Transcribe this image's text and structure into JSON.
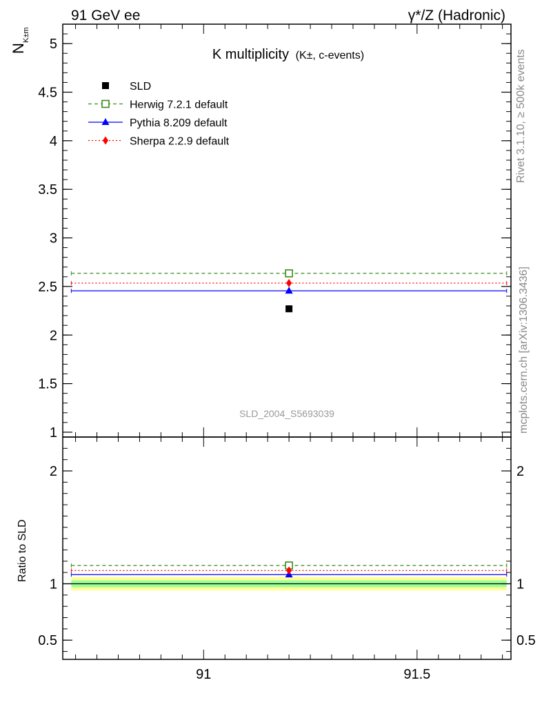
{
  "header": {
    "left": "91 GeV ee",
    "right": "γ*/Z (Hadronic)"
  },
  "side_labels": {
    "rivet": "Rivet 3.1.10, ≥ 500k events",
    "mcplots": "mcplots.cern.ch [arXiv:1306.3436]"
  },
  "chart_data": [
    {
      "type": "scatter",
      "title_main": "K multiplicity",
      "title_sub": "(K±, c-events)",
      "ylabel_main": "N",
      "ylabel_sub": "K±m",
      "watermark": "SLD_2004_S5693039",
      "xlim": [
        90.67,
        91.72
      ],
      "ylim": [
        0.95,
        5.2
      ],
      "yticks": [
        1,
        1.5,
        2,
        2.5,
        3,
        3.5,
        4,
        4.5,
        5
      ],
      "ytick_labels": [
        "1",
        "1.5",
        "2",
        "2.5",
        "3",
        "3.5",
        "4",
        "4.5",
        "5"
      ],
      "legend_position": "top-left",
      "series": [
        {
          "name": "SLD",
          "x": 91.2,
          "y": 2.27,
          "marker": "square-filled",
          "color": "#000000"
        },
        {
          "name": "Herwig 7.2.1 default",
          "x": 91.2,
          "y": 2.635,
          "x_range": [
            90.69,
            91.71
          ],
          "marker": "square-open",
          "line": "dashed",
          "color": "#3a8a1a"
        },
        {
          "name": "Pythia 8.209 default",
          "x": 91.2,
          "y": 2.455,
          "x_range": [
            90.69,
            91.71
          ],
          "marker": "triangle",
          "line": "solid",
          "color": "#0000ff"
        },
        {
          "name": "Sherpa 2.2.9 default",
          "x": 91.2,
          "y": 2.535,
          "x_range": [
            90.69,
            91.71
          ],
          "marker": "diamond",
          "line": "dotted",
          "color": "#ff0000"
        }
      ]
    },
    {
      "type": "scatter",
      "ylabel": "Ratio to SLD",
      "xlim": [
        90.67,
        91.72
      ],
      "ylim": [
        0.33,
        2.3
      ],
      "yticks": [
        0.5,
        1,
        2
      ],
      "ytick_labels": [
        "0.5",
        "1",
        "2"
      ],
      "xticks": [
        91,
        91.5
      ],
      "xtick_labels": [
        "91",
        "91.5"
      ],
      "bands": [
        {
          "lo": 0.94,
          "hi": 1.06,
          "color": "#ffff99"
        },
        {
          "lo": 0.97,
          "hi": 1.03,
          "color": "#99ff99"
        }
      ],
      "series": [
        {
          "name": "Herwig 7.2.1 default",
          "x": 91.2,
          "y": 1.162,
          "x_range": [
            90.69,
            91.71
          ],
          "marker": "square-open",
          "line": "dashed",
          "color": "#3a8a1a"
        },
        {
          "name": "Pythia 8.209 default",
          "x": 91.2,
          "y": 1.081,
          "x_range": [
            90.69,
            91.71
          ],
          "marker": "triangle",
          "line": "solid",
          "color": "#0000ff"
        },
        {
          "name": "Sherpa 2.2.9 default",
          "x": 91.2,
          "y": 1.117,
          "x_range": [
            90.69,
            91.71
          ],
          "marker": "diamond",
          "line": "dotted",
          "color": "#ff0000"
        }
      ],
      "reference_y": 1
    }
  ]
}
